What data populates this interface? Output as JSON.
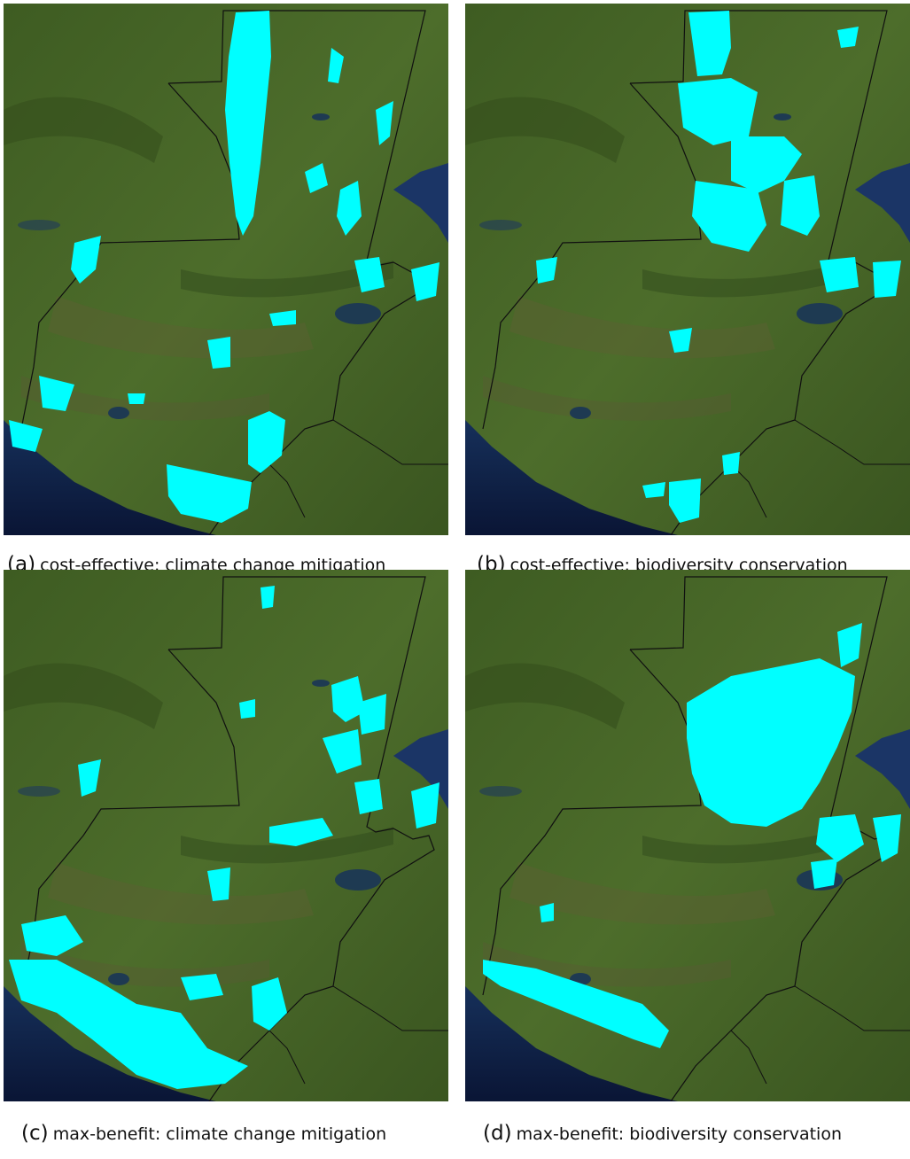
{
  "figure": {
    "panels": [
      {
        "id": "a",
        "letter": "(a)",
        "caption": "cost-effective: climate change mitigation"
      },
      {
        "id": "b",
        "letter": "(b)",
        "caption": "cost-effective: biodiversity conservation"
      },
      {
        "id": "c",
        "letter": "(c)",
        "caption": "max-benefit: climate change mitigation"
      },
      {
        "id": "d",
        "letter": "(d)",
        "caption": "max-benefit: biodiversity conservation"
      }
    ]
  },
  "colors": {
    "land_dark": "#2f4a1c",
    "land_mid": "#4b6b2a",
    "land_light": "#6d8a3e",
    "highland": "#5a5a35",
    "ocean": "#12234a",
    "ocean_deep": "#0a1535",
    "lake": "#1e3a52",
    "border": "#101010",
    "highlight": "#00ffff"
  }
}
